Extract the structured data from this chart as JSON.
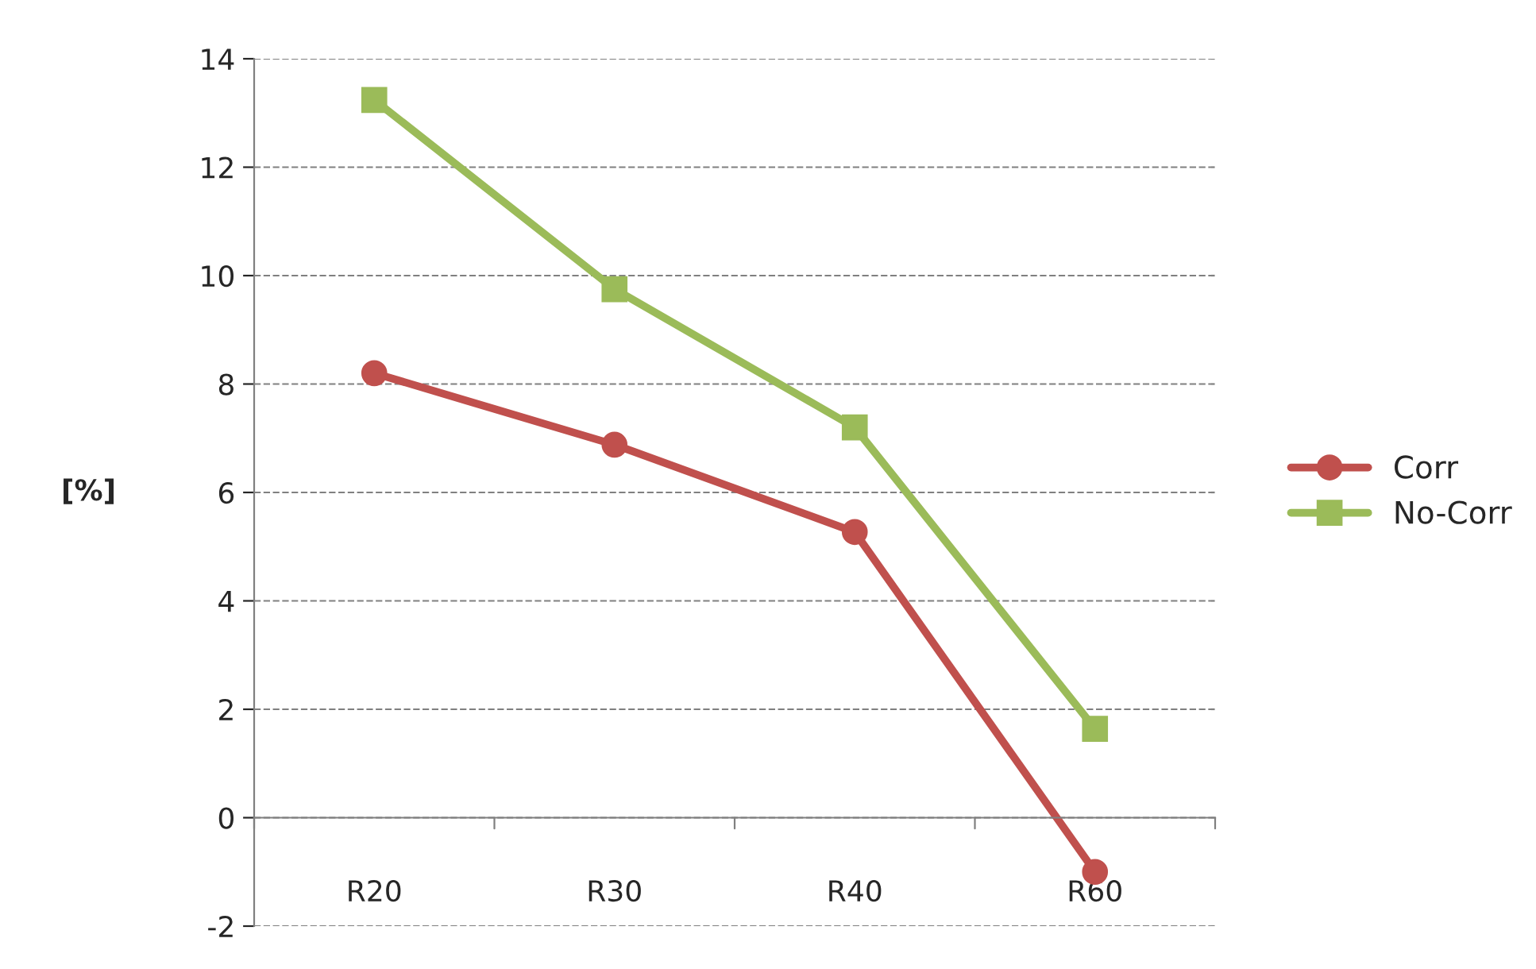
{
  "chart_data": {
    "type": "line",
    "ylabel": "[%]",
    "categories": [
      "R20",
      "R30",
      "R40",
      "R60"
    ],
    "series": [
      {
        "name": "Corr",
        "color": "#c0504d",
        "marker": "circle",
        "values": [
          8.2,
          6.88,
          5.27,
          -1.0
        ]
      },
      {
        "name": "No-Corr",
        "color": "#9bbb59",
        "marker": "square",
        "values": [
          13.24,
          9.75,
          7.2,
          1.64
        ]
      }
    ],
    "ylim": [
      -2,
      14
    ],
    "yticks": [
      -2,
      0,
      2,
      4,
      6,
      8,
      10,
      12,
      14
    ],
    "grid": "y",
    "legend": "right",
    "line_style": "solid"
  }
}
